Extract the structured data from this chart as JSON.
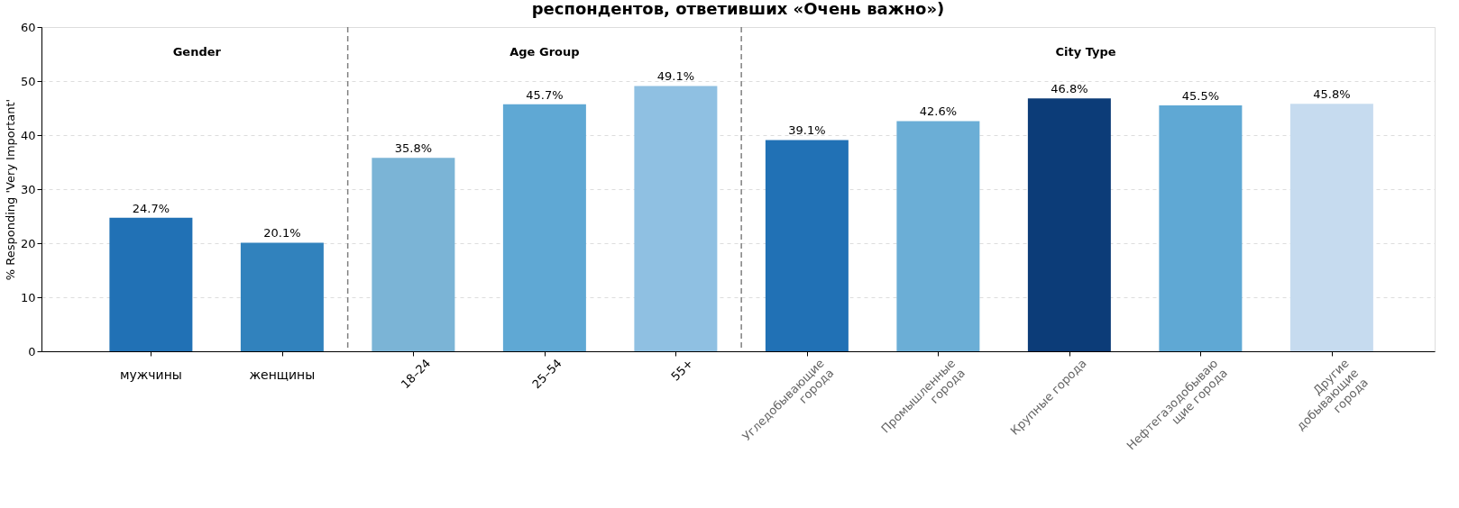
{
  "chart_data": {
    "type": "bar",
    "title": "респондентов, ответивших «Очень важно»)",
    "ylabel": "% Responding 'Very Important'",
    "categories": [
      "мужчины",
      "женщины",
      "18–24",
      "25–54",
      "55+",
      "Угледобывающие\nгорода",
      "Промышленные\nгорода",
      "Крупные города",
      "Нефтегазодобываю\nщие города",
      "Другие\nдобывающие\nгорода"
    ],
    "values": [
      24.7,
      20.1,
      35.8,
      45.7,
      49.1,
      39.1,
      42.6,
      46.8,
      45.5,
      45.8
    ],
    "value_labels": [
      "24.7%",
      "20.1%",
      "35.8%",
      "45.7%",
      "49.1%",
      "39.1%",
      "42.6%",
      "46.8%",
      "45.5%",
      "45.8%"
    ],
    "colors": [
      "#2171b5",
      "#3182bd",
      "#7bb4d6",
      "#5fa8d4",
      "#8fc0e2",
      "#2171b5",
      "#6baed6",
      "#0c3c78",
      "#5fa8d4",
      "#c6dbef"
    ],
    "ylim": [
      0,
      60
    ],
    "yticks": [
      0,
      10,
      20,
      30,
      40,
      50,
      60
    ],
    "grid": "y",
    "annotations": [
      "Gender",
      "Age Group",
      "City Type"
    ]
  }
}
